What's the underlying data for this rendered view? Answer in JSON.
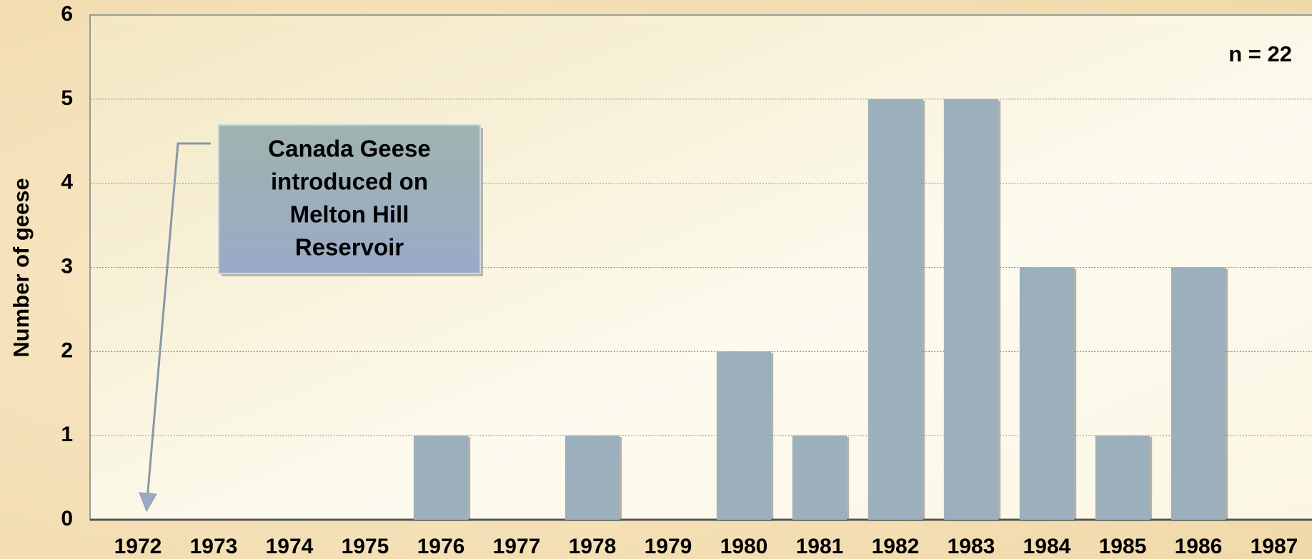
{
  "chart_data": {
    "type": "bar",
    "y_label": "Number of geese",
    "categories": [
      "1972",
      "1973",
      "1974",
      "1975",
      "1976",
      "1977",
      "1978",
      "1979",
      "1980",
      "1981",
      "1982",
      "1983",
      "1984",
      "1985",
      "1986",
      "1987"
    ],
    "values": [
      0,
      0,
      0,
      0,
      1,
      0,
      1,
      0,
      2,
      1,
      5,
      5,
      3,
      1,
      3,
      0
    ],
    "color": "#9cafbc",
    "ylim": [
      0,
      6
    ],
    "yticks": [
      0,
      1,
      2,
      3,
      4,
      5,
      6
    ],
    "grid": true,
    "annotations": {
      "note": [
        "Canada Geese",
        "introduced on",
        "Melton Hill",
        "Reservoir"
      ],
      "sample_size": "n = 22"
    }
  }
}
